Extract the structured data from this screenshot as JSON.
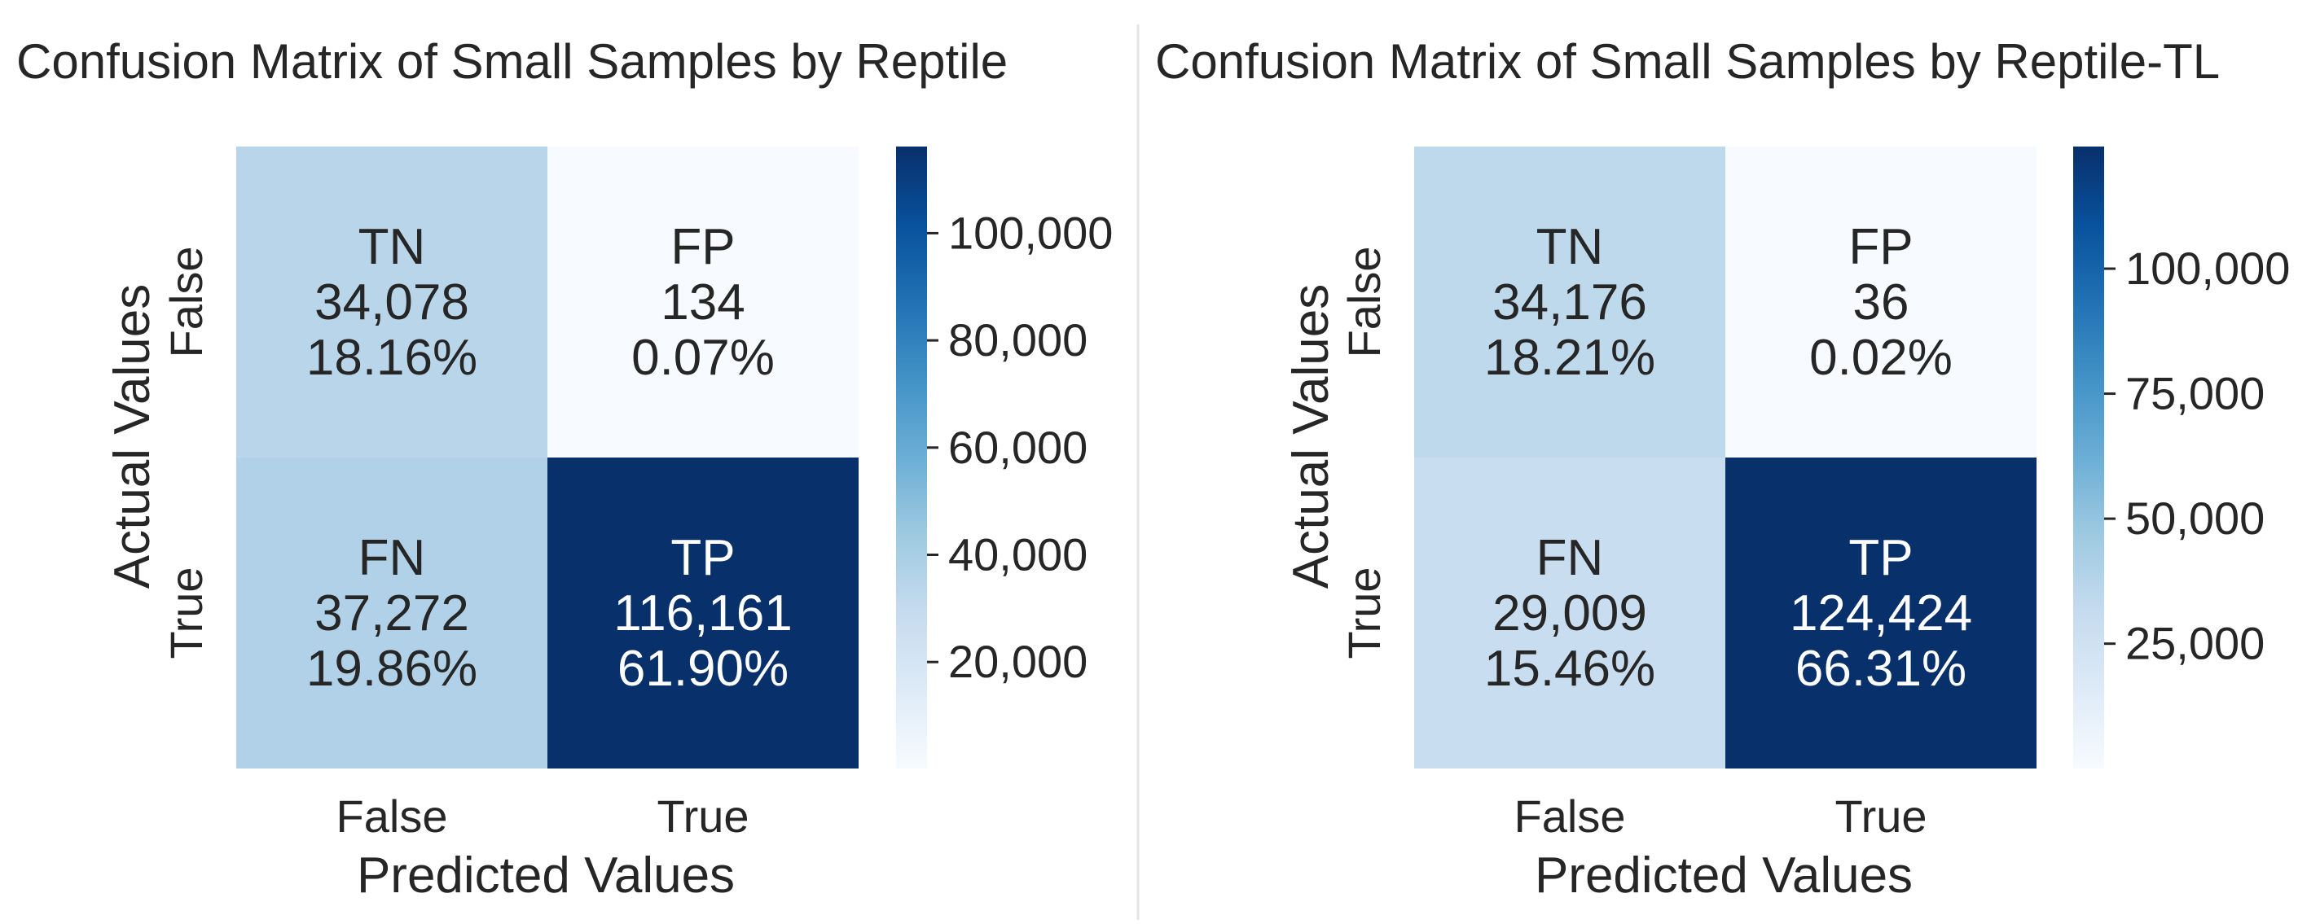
{
  "chart_data": [
    {
      "type": "heatmap",
      "title": "Confusion Matrix of Small Samples by Reptile",
      "xlabel": "Predicted Values",
      "ylabel": "Actual Values",
      "x_categories": [
        "False",
        "True"
      ],
      "y_categories": [
        "False",
        "True"
      ],
      "cells": [
        [
          {
            "label": "TN",
            "value": 34078,
            "count_text": "34,078",
            "percent_text": "18.16%"
          },
          {
            "label": "FP",
            "value": 134,
            "count_text": "134",
            "percent_text": "0.07%"
          }
        ],
        [
          {
            "label": "FN",
            "value": 37272,
            "count_text": "37,272",
            "percent_text": "19.86%"
          },
          {
            "label": "TP",
            "value": 116161,
            "count_text": "116,161",
            "percent_text": "61.90%"
          }
        ]
      ],
      "colorbar": {
        "colormap": "Blues",
        "range": [
          134,
          116161
        ],
        "ticks": [
          20000,
          40000,
          60000,
          80000,
          100000
        ],
        "tick_labels": [
          "20,000",
          "40,000",
          "60,000",
          "80,000",
          "100,000"
        ]
      }
    },
    {
      "type": "heatmap",
      "title": "Confusion Matrix of Small Samples by Reptile-TL",
      "xlabel": "Predicted Values",
      "ylabel": "Actual Values",
      "x_categories": [
        "False",
        "True"
      ],
      "y_categories": [
        "False",
        "True"
      ],
      "cells": [
        [
          {
            "label": "TN",
            "value": 34176,
            "count_text": "34,176",
            "percent_text": "18.21%"
          },
          {
            "label": "FP",
            "value": 36,
            "count_text": "36",
            "percent_text": "0.02%"
          }
        ],
        [
          {
            "label": "FN",
            "value": 29009,
            "count_text": "29,009",
            "percent_text": "15.46%"
          },
          {
            "label": "TP",
            "value": 124424,
            "count_text": "124,424",
            "percent_text": "66.31%"
          }
        ]
      ],
      "colorbar": {
        "colormap": "Blues",
        "range": [
          36,
          124424
        ],
        "ticks": [
          25000,
          50000,
          75000,
          100000
        ],
        "tick_labels": [
          "25,000",
          "50,000",
          "75,000",
          "100,000"
        ]
      }
    }
  ],
  "colors": {
    "blues_stops": [
      "#f7fbff",
      "#deebf7",
      "#c6dbef",
      "#9ecae1",
      "#6baed6",
      "#4292c6",
      "#2171b5",
      "#08519c",
      "#08306b"
    ],
    "text_dark": "#262626",
    "divider": "#e6e6e6"
  }
}
